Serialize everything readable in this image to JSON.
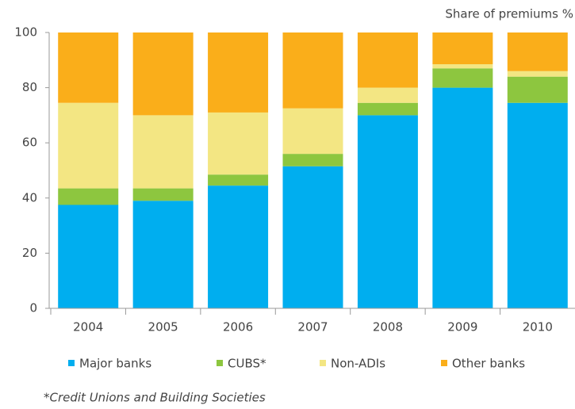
{
  "chart_data": {
    "type": "stacked_bar",
    "ylabel": "Share of premiums %",
    "categories": [
      "2004",
      "2005",
      "2006",
      "2007",
      "2008",
      "2009",
      "2010"
    ],
    "series": [
      {
        "name": "Major banks",
        "color": "#00aeef",
        "values": [
          37.5,
          39,
          44.5,
          51.5,
          70,
          80,
          74.5
        ]
      },
      {
        "name": "CUBS*",
        "color": "#8dc63f",
        "values": [
          6,
          4.5,
          4,
          4.5,
          4.5,
          7,
          9.5
        ]
      },
      {
        "name": "Non-ADIs",
        "color": "#f3e683",
        "values": [
          31,
          26.5,
          22.5,
          16.5,
          5.5,
          1.5,
          2
        ]
      },
      {
        "name": "Other banks",
        "color": "#faae1a",
        "values": [
          25.5,
          30,
          29,
          27.5,
          20,
          11.5,
          14
        ]
      }
    ],
    "ylim": [
      0,
      100
    ],
    "yticks": [
      0,
      20,
      40,
      60,
      80,
      100
    ],
    "note": "*Credit Unions and Building Societies"
  }
}
